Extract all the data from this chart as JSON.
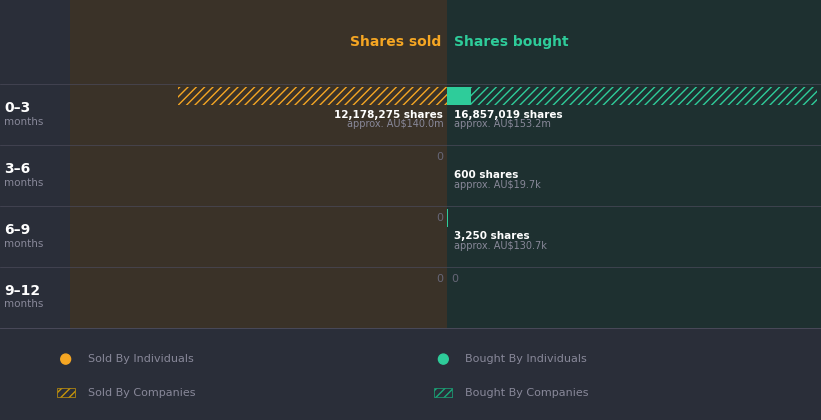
{
  "bg_color": "#2a2e39",
  "left_col_bg": "#3a3228",
  "right_col_bg": "#1e3030",
  "divider_color": "#4a4a5a",
  "header_sold_color": "#f5a623",
  "header_bought_color": "#2ecc9a",
  "row_label_color": "#ffffff",
  "months_label_color": "#888899",
  "zero_label_color": "#666677",
  "shares_text_color": "#ffffff",
  "approx_text_color": "#888899",
  "sold_bars": [
    12178275,
    0,
    0,
    0
  ],
  "bought_bars": [
    16857019,
    600,
    3250,
    0
  ],
  "sold_shares_text": [
    "12,178,275 shares",
    "",
    "",
    ""
  ],
  "sold_approx_text": [
    "approx. AU$140.0m",
    "",
    "",
    ""
  ],
  "bought_shares_text": [
    "16,857,019 shares",
    "600 shares",
    "3,250 shares",
    "0"
  ],
  "bought_approx_text": [
    "approx. AU$153.2m",
    "approx. AU$19.7k",
    "approx. AU$130.7k",
    ""
  ],
  "sold_zero_labels": [
    "",
    "0",
    "0",
    "0"
  ],
  "hatch_color_sold": "#f5a623",
  "hatch_color_bought": "#2ecc9a",
  "solid_color_bought": "#2ecc9a",
  "row_labels": [
    "0–3",
    "3–6",
    "6–9",
    "9–12"
  ],
  "legend_sol_ind_color": "#f5a623",
  "legend_buy_ind_color": "#2ecc9a",
  "legend_sol_comp_color": "#c8960a",
  "legend_buy_comp_color": "#1aaa7a"
}
